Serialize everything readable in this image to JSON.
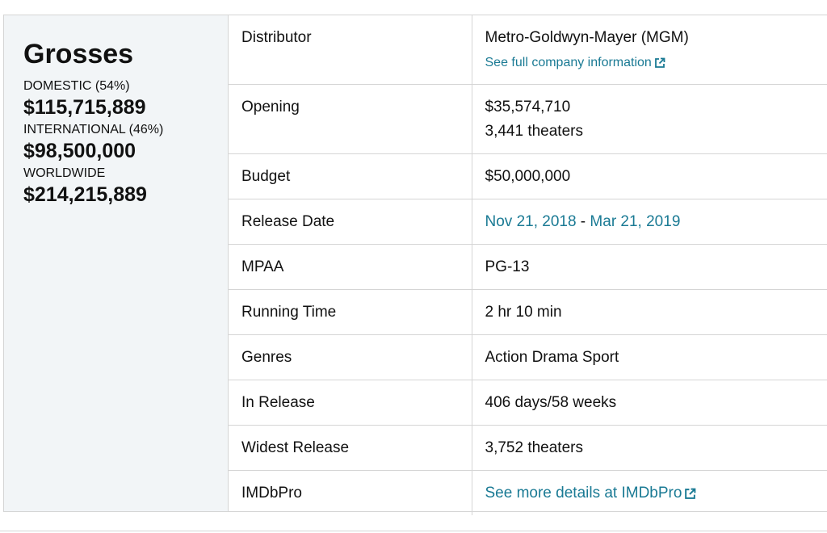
{
  "grosses": {
    "title": "Grosses",
    "domestic_label": "DOMESTIC (54%)",
    "domestic_value": "$115,715,889",
    "international_label": "INTERNATIONAL (46%)",
    "international_value": "$98,500,000",
    "worldwide_label": "WORLDWIDE",
    "worldwide_value": "$214,215,889"
  },
  "summary": {
    "distributor": {
      "label": "Distributor",
      "value": "Metro-Goldwyn-Mayer (MGM)",
      "link": "See full company information"
    },
    "opening": {
      "label": "Opening",
      "value": "$35,574,710",
      "theaters": "3,441 theaters"
    },
    "budget": {
      "label": "Budget",
      "value": "$50,000,000"
    },
    "release_date": {
      "label": "Release Date",
      "start": "Nov 21, 2018",
      "separator": " - ",
      "end": "Mar 21, 2019"
    },
    "mpaa": {
      "label": "MPAA",
      "value": "PG-13"
    },
    "running_time": {
      "label": "Running Time",
      "value": "2 hr 10 min"
    },
    "genres": {
      "label": "Genres",
      "value": "Action Drama Sport"
    },
    "in_release": {
      "label": "In Release",
      "value": "406 days/58 weeks"
    },
    "widest_release": {
      "label": "Widest Release",
      "value": "3,752 theaters"
    },
    "imdbpro": {
      "label": "IMDbPro",
      "link": "See more details at IMDbPro"
    }
  },
  "colors": {
    "link": "#1a7a94",
    "panel_bg": "#f2f5f7",
    "border": "#d5d5d5"
  },
  "icons": {
    "external_link": "external-link-icon"
  }
}
